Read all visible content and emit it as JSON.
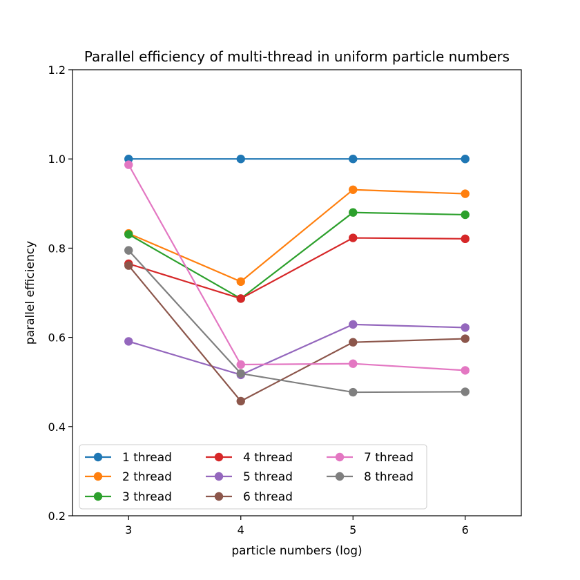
{
  "chart_data": {
    "type": "line",
    "title": "Parallel efficiency of multi-thread in uniform particle numbers",
    "xlabel": "particle numbers (log)",
    "ylabel": "parallel efficiency",
    "xlim": [
      2.5,
      6.5
    ],
    "ylim": [
      0.2,
      1.2
    ],
    "xticks": [
      3,
      4,
      5,
      6
    ],
    "yticks": [
      0.2,
      0.4,
      0.6,
      0.8,
      1.0,
      1.2
    ],
    "ytick_labels": [
      "0.2",
      "0.4",
      "0.6",
      "0.8",
      "1.0",
      "1.2"
    ],
    "xtick_labels": [
      "3",
      "4",
      "5",
      "6"
    ],
    "grid": false,
    "legend_position": "lower-left",
    "legend_columns": 3,
    "x": [
      3,
      4,
      5,
      6
    ],
    "series": [
      {
        "name": "1 thread",
        "color": "#1f77b4",
        "values": [
          1.0,
          1.0,
          1.0,
          1.0
        ]
      },
      {
        "name": "2 thread",
        "color": "#ff7f0e",
        "values": [
          0.833,
          0.725,
          0.931,
          0.922
        ]
      },
      {
        "name": "3 thread",
        "color": "#2ca02c",
        "values": [
          0.831,
          0.687,
          0.88,
          0.875
        ]
      },
      {
        "name": "4 thread",
        "color": "#d62728",
        "values": [
          0.765,
          0.687,
          0.823,
          0.821
        ]
      },
      {
        "name": "5 thread",
        "color": "#9467bd",
        "values": [
          0.591,
          0.516,
          0.629,
          0.622
        ]
      },
      {
        "name": "6 thread",
        "color": "#8c564b",
        "values": [
          0.761,
          0.457,
          0.589,
          0.597
        ]
      },
      {
        "name": "7 thread",
        "color": "#e377c2",
        "values": [
          0.987,
          0.539,
          0.541,
          0.526
        ]
      },
      {
        "name": "8 thread",
        "color": "#7f7f7f",
        "values": [
          0.795,
          0.519,
          0.477,
          0.478
        ]
      }
    ]
  }
}
